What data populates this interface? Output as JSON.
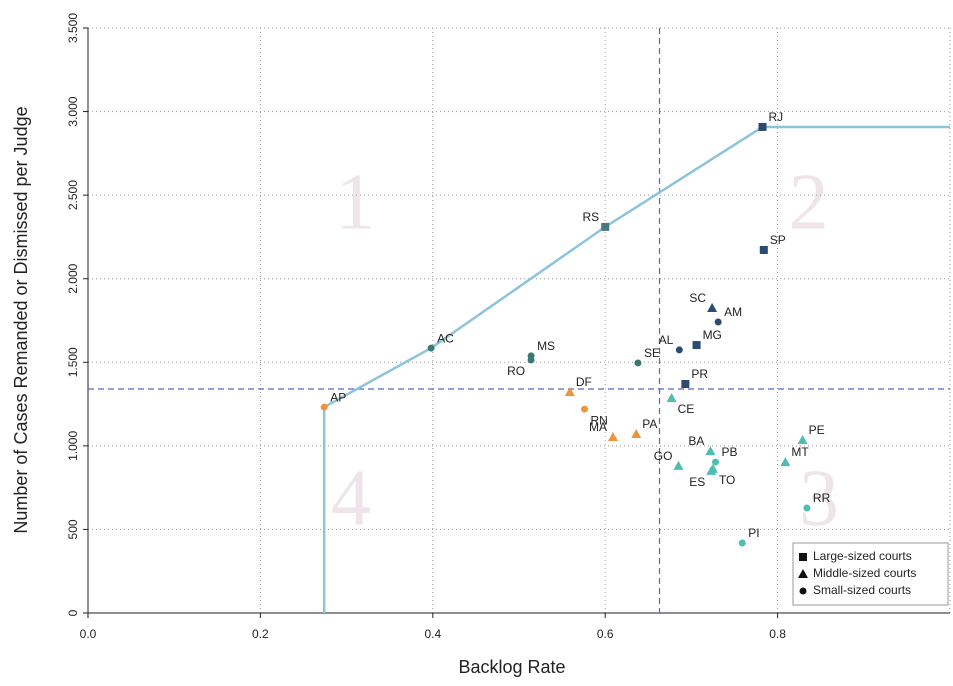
{
  "chart_data": {
    "type": "scatter",
    "x_label": "Backlog Rate",
    "y_label": "Number of Cases Remanded or Dismissed per Judge",
    "xlim": [
      0,
      1.0
    ],
    "ylim": [
      0,
      3500
    ],
    "xticks": [
      {
        "value": 0,
        "label": "0.0"
      },
      0.2,
      0.4,
      0.6,
      0.8
    ],
    "yticks": [
      0,
      500,
      {
        "value": 1000,
        "label": "1.000"
      },
      {
        "value": 1500,
        "label": "1.500"
      },
      {
        "value": 2000,
        "label": "2.000"
      },
      {
        "value": 2500,
        "label": "2.500"
      },
      {
        "value": 3000,
        "label": "3.000"
      },
      {
        "value": 3500,
        "label": "3.500"
      }
    ],
    "grid": true,
    "legend": "lower right",
    "threshold_x": 0.663,
    "threshold_y": 1340,
    "threshold_color": "#5566cc",
    "frontier": {
      "color": "#8cc4dc",
      "x": [
        0.274,
        0.274,
        0.398,
        0.6,
        0.7825,
        1.0
      ],
      "values": [
        0,
        1232,
        1585,
        2310,
        2908,
        2908
      ]
    },
    "annotations": [
      "1",
      "2",
      "3",
      "4"
    ],
    "series": [
      {
        "name": "Large-sized courts",
        "marker": "square",
        "labels": [
          "RJ",
          "RS",
          "SP",
          "MG",
          "PR"
        ],
        "x": [
          0.7825,
          0.6,
          0.784,
          0.706,
          0.693
        ],
        "values": [
          2908,
          2310,
          2172,
          1603,
          1370
        ],
        "colors": [
          "#2d4a70",
          "#4a7a80",
          "#2d4a70",
          "#2d4a70",
          "#2d4a70"
        ]
      },
      {
        "name": "Middle-sized courts",
        "marker": "triangle",
        "labels": [
          "SC",
          "DF",
          "PA",
          "MA",
          "CE",
          "BA",
          "TO",
          "ES",
          "GO",
          "PE",
          "MT"
        ],
        "x": [
          0.724,
          0.559,
          0.636,
          0.609,
          0.677,
          0.722,
          0.725,
          0.723,
          0.685,
          0.829,
          0.809
        ],
        "values": [
          1825,
          1322,
          1071,
          1053,
          1286,
          969,
          862,
          850,
          880,
          1035,
          903
        ],
        "colors": [
          "#2d4a70",
          "#f0943c",
          "#f0943c",
          "#f0943c",
          "#4dbfb0",
          "#4dbfb0",
          "#4dbfb0",
          "#4dbfb0",
          "#4dbfb0",
          "#4dbfb0",
          "#4dbfb0"
        ]
      },
      {
        "name": "Small-sized courts",
        "marker": "circle",
        "labels": [
          "AM",
          "AL",
          "SE",
          "MS",
          "RO",
          "AC",
          "AP",
          "RN",
          "PB",
          "RR",
          "PI"
        ],
        "x": [
          0.731,
          0.686,
          0.638,
          0.514,
          0.514,
          0.398,
          0.274,
          0.576,
          0.728,
          0.834,
          0.759
        ],
        "values": [
          1741,
          1574,
          1496,
          1538,
          1514,
          1585,
          1232,
          1220,
          903,
          628,
          419
        ],
        "colors": [
          "#2d4a70",
          "#2d4a70",
          "#3a7a70",
          "#3a7a70",
          "#3a7a70",
          "#3a7a70",
          "#f0943c",
          "#f0943c",
          "#4dbfb0",
          "#4dbfb0",
          "#4dbfb0"
        ]
      }
    ]
  }
}
